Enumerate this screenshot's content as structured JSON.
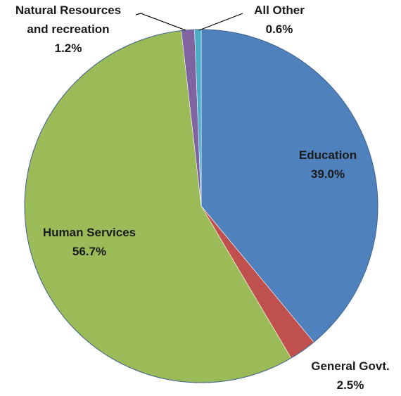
{
  "chart_data": {
    "type": "pie",
    "title": "",
    "slices": [
      {
        "label": "Education",
        "value": 39.0,
        "value_label": "39.0%",
        "color": "#4f81bd"
      },
      {
        "label": "General Govt.",
        "value": 2.5,
        "value_label": "2.5%",
        "color": "#c0504d"
      },
      {
        "label": "Human Services",
        "value": 56.7,
        "value_label": "56.7%",
        "color": "#9bbb59"
      },
      {
        "label": "Natural Resources and recreation",
        "label_lines": [
          "Natural Resources",
          "and recreation"
        ],
        "value": 1.2,
        "value_label": "1.2%",
        "color": "#8064a2"
      },
      {
        "label": "All Other",
        "value": 0.6,
        "value_label": "0.6%",
        "color": "#4bacc6"
      }
    ],
    "start_angle": "12 o'clock",
    "direction": "clockwise",
    "legend": "none"
  }
}
